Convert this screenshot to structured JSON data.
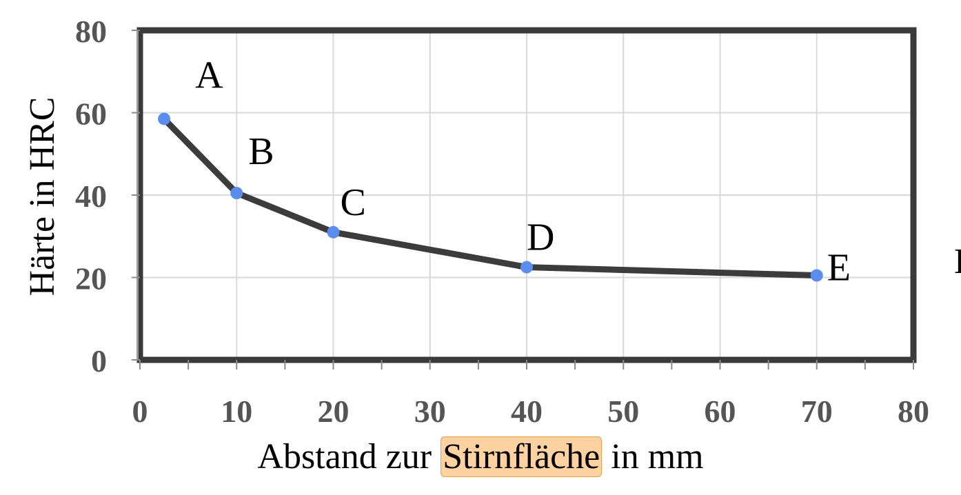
{
  "chart_data": {
    "type": "line",
    "xlabel_parts": [
      "Abstand zur ",
      "Stirnfläche",
      " in mm"
    ],
    "ylabel": "Härte in HRC",
    "xlim": [
      0,
      80
    ],
    "ylim": [
      0,
      80
    ],
    "x_ticks": [
      "0",
      "10",
      "20",
      "30",
      "40",
      "50",
      "60",
      "70",
      "80"
    ],
    "y_ticks": [
      "0",
      "20",
      "40",
      "60",
      "80"
    ],
    "grid": true,
    "series": [
      {
        "x": [
          2.5,
          10,
          20,
          40,
          70
        ],
        "y": [
          58.5,
          40.5,
          31,
          22.5,
          20.5
        ],
        "point_labels": [
          "A",
          "B",
          "C",
          "D",
          "E"
        ]
      }
    ],
    "line_color": "#3c3c3c",
    "marker_color": "#5b8def",
    "highlight_color": "#fdd2a0"
  },
  "edge_glyph": "E"
}
